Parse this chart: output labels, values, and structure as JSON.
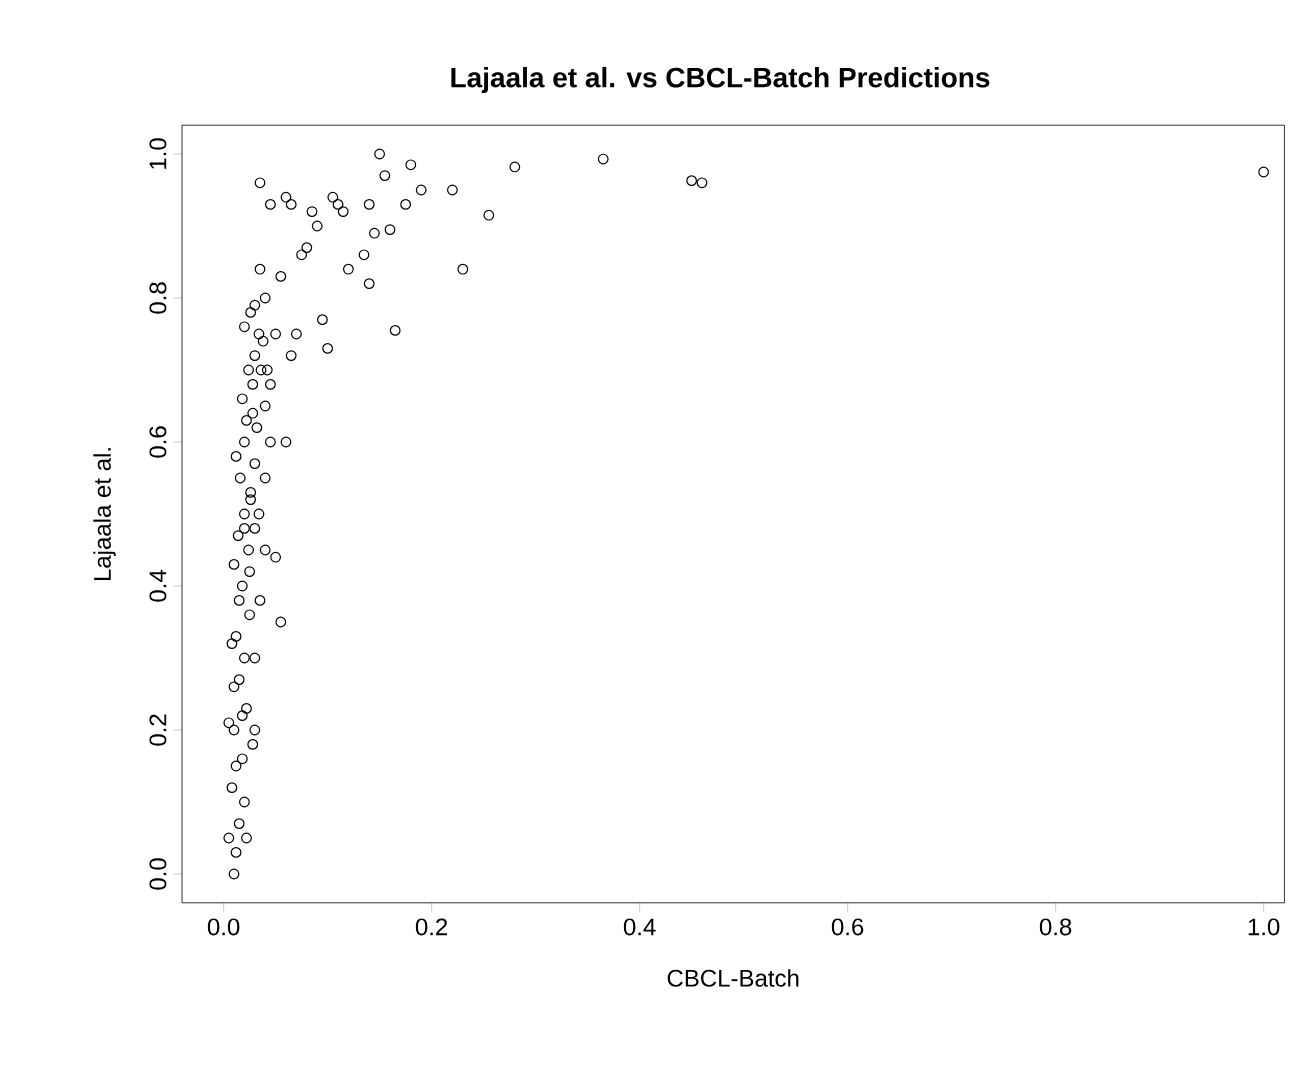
{
  "chart_data": {
    "type": "scatter",
    "title": "Lajaala et al. vs CBCL-Batch Predictions",
    "xlabel": "CBCL-Batch",
    "ylabel": "Lajaala et al.",
    "marker": "circle",
    "xlim": [
      -0.04,
      1.02
    ],
    "ylim": [
      -0.04,
      1.04
    ],
    "xticks": [
      {
        "value": 0,
        "label": "0.0"
      },
      {
        "value": 0.2,
        "label": "0.2"
      },
      {
        "value": 0.4,
        "label": "0.4"
      },
      {
        "value": 0.6,
        "label": "0.6"
      },
      {
        "value": 0.8,
        "label": "0.8"
      },
      {
        "value": 1,
        "label": "1.0"
      }
    ],
    "yticks": [
      {
        "value": 0,
        "label": "0.0"
      },
      {
        "value": 0.2,
        "label": "0.2"
      },
      {
        "value": 0.4,
        "label": "0.4"
      },
      {
        "value": 0.6,
        "label": "0.6"
      },
      {
        "value": 0.8,
        "label": "0.8"
      },
      {
        "value": 1,
        "label": "1.0"
      }
    ],
    "series": [
      {
        "color": "#000000",
        "x": [
          1.0,
          0.46,
          0.45,
          0.365,
          0.28,
          0.255,
          0.23,
          0.22,
          0.19,
          0.18,
          0.175,
          0.165,
          0.16,
          0.15,
          0.155,
          0.14,
          0.145,
          0.14,
          0.135,
          0.12,
          0.115,
          0.105,
          0.11,
          0.1,
          0.095,
          0.09,
          0.085,
          0.08,
          0.075,
          0.07,
          0.065,
          0.06,
          0.065,
          0.06,
          0.055,
          0.055,
          0.05,
          0.045,
          0.035,
          0.04,
          0.045,
          0.04,
          0.04,
          0.035,
          0.03,
          0.03,
          0.005,
          0.008,
          0.01,
          0.012,
          0.015,
          0.01,
          0.02,
          0.018,
          0.022,
          0.015,
          0.012,
          0.02,
          0.025,
          0.018,
          0.01,
          0.008,
          0.014,
          0.02,
          0.024,
          0.016,
          0.012,
          0.02,
          0.026,
          0.022,
          0.018,
          0.028,
          0.024,
          0.03,
          0.02,
          0.026,
          0.03,
          0.034,
          0.028,
          0.032,
          0.036,
          0.03,
          0.038,
          0.034,
          0.04,
          0.025,
          0.015,
          0.005,
          0.012,
          0.022,
          0.028,
          0.018,
          0.01,
          0.02,
          0.026,
          0.03,
          0.045,
          0.05,
          0.035,
          0.042
        ],
        "values": [
          0.975,
          0.96,
          0.963,
          0.993,
          0.982,
          0.915,
          0.84,
          0.95,
          0.95,
          0.985,
          0.93,
          0.755,
          0.895,
          1.0,
          0.97,
          0.93,
          0.89,
          0.82,
          0.86,
          0.84,
          0.92,
          0.94,
          0.93,
          0.73,
          0.77,
          0.9,
          0.92,
          0.87,
          0.86,
          0.75,
          0.72,
          0.94,
          0.93,
          0.6,
          0.35,
          0.83,
          0.75,
          0.93,
          0.96,
          0.8,
          0.68,
          0.55,
          0.45,
          0.38,
          0.3,
          0.2,
          0.05,
          0.12,
          0.0,
          0.03,
          0.07,
          0.2,
          0.1,
          0.16,
          0.23,
          0.27,
          0.33,
          0.3,
          0.36,
          0.4,
          0.43,
          0.32,
          0.47,
          0.5,
          0.45,
          0.55,
          0.58,
          0.6,
          0.53,
          0.63,
          0.66,
          0.68,
          0.7,
          0.72,
          0.76,
          0.78,
          0.79,
          0.75,
          0.64,
          0.62,
          0.7,
          0.57,
          0.74,
          0.5,
          0.65,
          0.42,
          0.38,
          0.21,
          0.15,
          0.05,
          0.18,
          0.22,
          0.26,
          0.48,
          0.52,
          0.48,
          0.6,
          0.44,
          0.84,
          0.7
        ]
      }
    ]
  }
}
